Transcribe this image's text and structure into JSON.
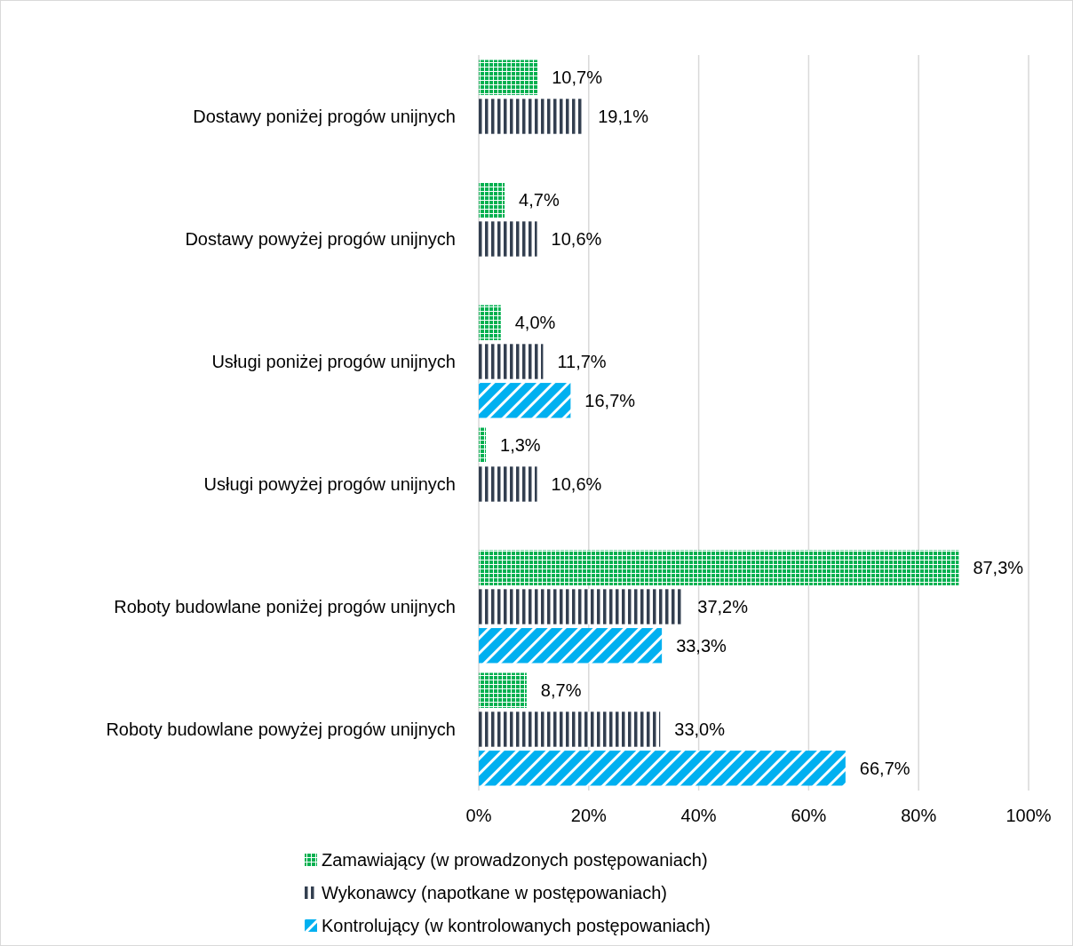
{
  "chart_data": {
    "type": "bar",
    "orientation": "horizontal",
    "categories": [
      "Dostawy poniżej progów unijnych",
      "Dostawy powyżej progów unijnych",
      "Usługi poniżej progów unijnych",
      "Usługi powyżej progów unijnych",
      "Roboty budowlane poniżej progów unijnych",
      "Roboty budowlane powyżej progów unijnych"
    ],
    "series": [
      {
        "name": "Zamawiający (w prowadzonych postępowaniach)",
        "color": "#00b050",
        "values": [
          10.7,
          4.7,
          4.0,
          1.3,
          87.3,
          8.7
        ],
        "value_labels": [
          "10,7%",
          "4,7%",
          "4,0%",
          "1,3%",
          "87,3%",
          "8,7%"
        ]
      },
      {
        "name": "Wykonawcy (napotkane w postępowaniach)",
        "color": "#333f50",
        "values": [
          19.1,
          10.6,
          11.7,
          10.6,
          37.2,
          33.0
        ],
        "value_labels": [
          "19,1%",
          "10,6%",
          "11,7%",
          "10,6%",
          "37,2%",
          "33,0%"
        ]
      },
      {
        "name": "Kontrolujący (w kontrolowanych postępowaniach)",
        "color": "#00b0f0",
        "values": [
          null,
          null,
          16.7,
          null,
          33.3,
          66.7
        ],
        "value_labels": [
          null,
          null,
          "16,7%",
          null,
          "33,3%",
          "66,7%"
        ]
      }
    ],
    "xlim": [
      0,
      100
    ],
    "xticks": [
      {
        "value": 0,
        "label": "0%"
      },
      {
        "value": 20,
        "label": "20%"
      },
      {
        "value": 40,
        "label": "40%"
      },
      {
        "value": 60,
        "label": "60%"
      },
      {
        "value": 80,
        "label": "80%"
      },
      {
        "value": 100,
        "label": "100%"
      }
    ],
    "grid": "x",
    "legend": "bottom"
  }
}
